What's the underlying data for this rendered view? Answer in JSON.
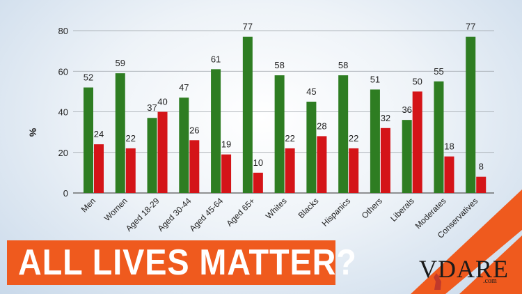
{
  "chart_data": {
    "type": "bar",
    "categories": [
      "Men",
      "Women",
      "Aged 18-29",
      "Aged 30-44",
      "Aged 45-64",
      "Aged 65+",
      "Whites",
      "Blacks",
      "Hispanics",
      "Others",
      "Liberals",
      "Moderates",
      "Conservatives"
    ],
    "series": [
      {
        "color": "#2e7d22",
        "values": [
          52,
          59,
          37,
          47,
          61,
          77,
          58,
          45,
          58,
          51,
          36,
          55,
          77
        ]
      },
      {
        "color": "#d41418",
        "values": [
          24,
          22,
          40,
          26,
          19,
          10,
          22,
          28,
          22,
          32,
          50,
          18,
          8
        ]
      }
    ],
    "ylabel": "%",
    "ylim": [
      0,
      80
    ],
    "yticks": [
      0,
      20,
      40,
      60,
      80
    ],
    "grid": true
  },
  "banner": {
    "text": "ALL LIVES MATTER?",
    "color": "#ef5a1e"
  },
  "logo": {
    "text": "VDARE",
    "sub": ".com"
  }
}
